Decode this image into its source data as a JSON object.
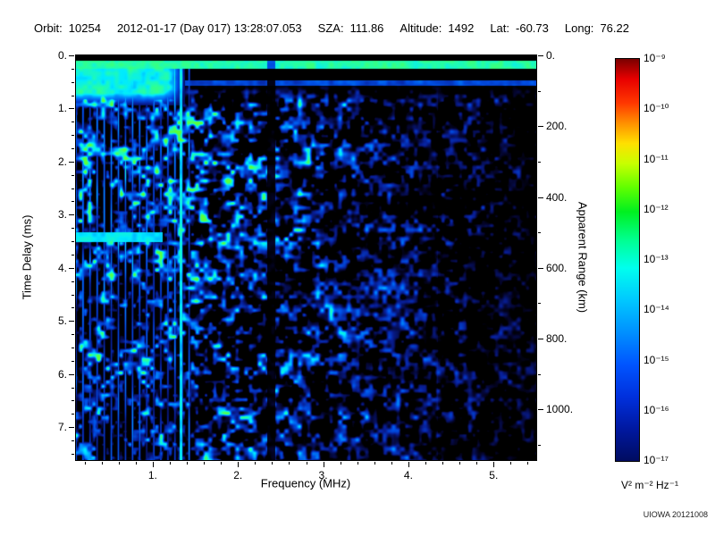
{
  "header": {
    "items": [
      {
        "label": "Orbit:",
        "value": "10254"
      },
      {
        "label": "",
        "value": "2012-01-17 (Day 017) 13:28:07.053"
      },
      {
        "label": "SZA:",
        "value": "111.86"
      },
      {
        "label": "Altitude:",
        "value": "1492"
      },
      {
        "label": "Lat:",
        "value": "-60.73"
      },
      {
        "label": "Long:",
        "value": "76.22"
      }
    ]
  },
  "footer": {
    "credit": "UIOWA 20121008"
  },
  "chart_data": {
    "type": "heatmap",
    "description": "Radar sounder ionogram: received spectral density vs sounding frequency and echo time delay; mostly dark background with blue/cyan diffuse echoes, bright green-cyan surface band near zero delay, strong vertical plasma resonance stripes below 1.5 MHz, a cyan horizontal resonance band near 3.4 ms at low frequency, and a black attenuation column near 2.4 MHz",
    "xlabel": "Frequency (MHz)",
    "ylabel_left": "Time Delay (ms)",
    "ylabel_right": "Apparent Range (km)",
    "xlim": [
      0.1,
      5.5
    ],
    "ylim_ms": [
      0,
      7.62
    ],
    "ylim_km": [
      0,
      1143
    ],
    "x_ticks": {
      "values": [
        1,
        2,
        3,
        4,
        5
      ],
      "labels": [
        "1.",
        "2.",
        "3.",
        "4.",
        "5."
      ],
      "minor_step": 0.2
    },
    "y_ticks": {
      "values": [
        0,
        1,
        2,
        3,
        4,
        5,
        6,
        7
      ],
      "labels": [
        "0.",
        "1.",
        "2.",
        "3.",
        "4.",
        "5.",
        "6.",
        "7."
      ],
      "minor_step": 0.25
    },
    "right_ticks": {
      "values": [
        0,
        200,
        400,
        600,
        800,
        1000
      ],
      "labels": [
        "0.",
        "200.",
        "400.",
        "600.",
        "800.",
        "1000."
      ],
      "minor_step": 100
    },
    "colorbar": {
      "scale": "log",
      "range_min": "1e-17",
      "range_max": "1e-9",
      "tick_labels": [
        "10⁻⁹",
        "10⁻¹⁰",
        "10⁻¹¹",
        "10⁻¹²",
        "10⁻¹³",
        "10⁻¹⁴",
        "10⁻¹⁵",
        "10⁻¹⁶",
        "10⁻¹⁷"
      ],
      "units": "V² m⁻² Hz⁻¹",
      "gradient_stops": [
        "#7a0000 0%",
        "#e80000 5%",
        "#ff3800 11%",
        "#ff9000 16%",
        "#ffe000 21%",
        "#c8ff00 26%",
        "#60ff00 32%",
        "#00f020 38%",
        "#00ff90 45%",
        "#00ffee 52%",
        "#00c8ff 60%",
        "#0090ff 68%",
        "#0055ff 76%",
        "#0030dd 84%",
        "#0018a0 92%",
        "#000c60 100%"
      ]
    },
    "features": {
      "top_band": {
        "t": 0.18,
        "half_ms": 0.08,
        "intensity": 0.95
      },
      "blob": {
        "f_max": 1.38,
        "t_max": 0.95,
        "intensity": 0.93
      },
      "plasma_lines": {
        "f_max": 1.47,
        "period_mhz": 0.083,
        "intensity": 0.92
      },
      "vline": {
        "f": 1.33,
        "half_mhz": 0.018,
        "intensity": 0.88
      },
      "trace2": {
        "t": 0.52,
        "f_start": 1.38,
        "intensity": 0.55
      },
      "band34": {
        "t": 3.42,
        "half_ms": 0.09,
        "f_max": 1.12,
        "intensity": 0.85
      },
      "dark_column": {
        "f": 2.39,
        "half_mhz": 0.05
      },
      "diffuse": {
        "t_start": 0.55,
        "fade_ms": 0.3,
        "f_fade_start": 1.6,
        "f_sparse": 4.35
      }
    },
    "render": {
      "seed": 20121008,
      "colormap": [
        [
          0.0,
          [
            0,
            0,
            0
          ]
        ],
        [
          0.07,
          [
            4,
            4,
            40
          ]
        ],
        [
          0.25,
          [
            8,
            30,
            150
          ]
        ],
        [
          0.45,
          [
            0,
            80,
            230
          ]
        ],
        [
          0.62,
          [
            0,
            150,
            255
          ]
        ],
        [
          0.75,
          [
            0,
            235,
            255
          ]
        ],
        [
          0.87,
          [
            40,
            255,
            160
          ]
        ],
        [
          1.0,
          [
            90,
            255,
            60
          ]
        ]
      ]
    }
  }
}
